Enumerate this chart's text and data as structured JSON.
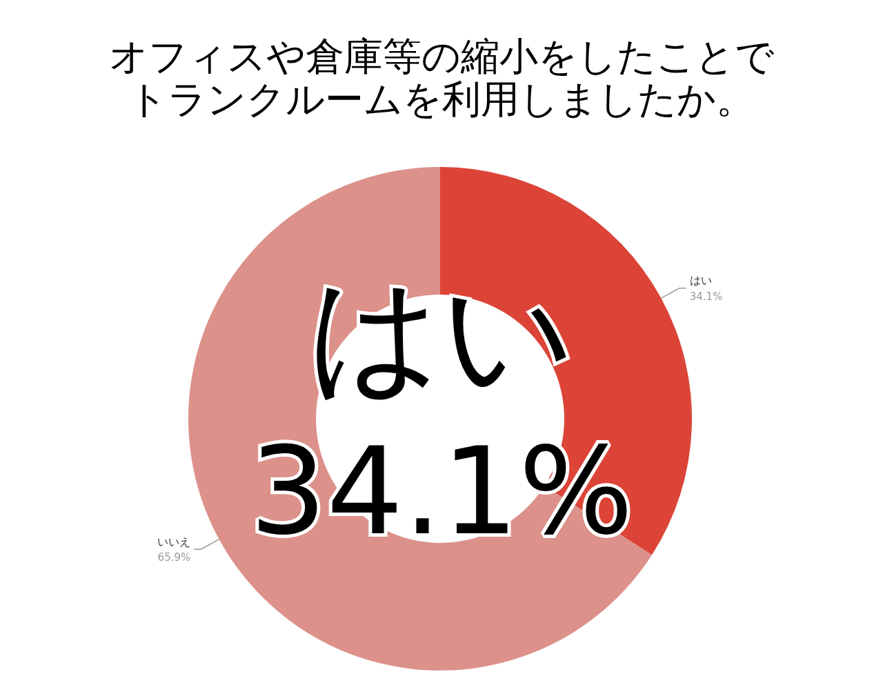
{
  "chart_data": {
    "type": "donut",
    "title": "オフィスや倉庫等の縮小をしたことでトランクルームを利用しましたか。",
    "categories": [
      "はい",
      "いいえ"
    ],
    "values": [
      34.1,
      65.9
    ],
    "colors": [
      "#db4437",
      "#dc918b"
    ],
    "value_labels": [
      "34.1%",
      "65.9%"
    ],
    "annotations": [
      "はい",
      "34.1%"
    ]
  }
}
